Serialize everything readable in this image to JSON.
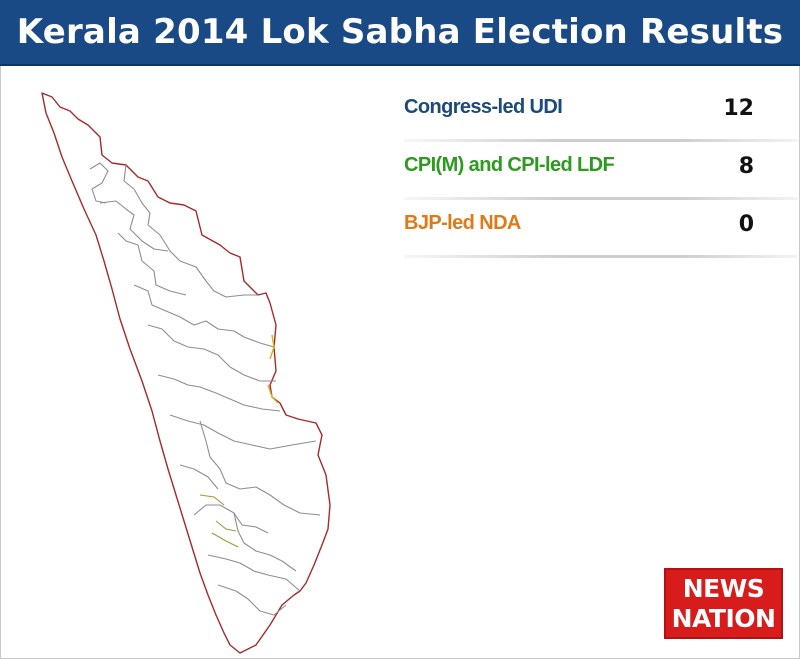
{
  "header": {
    "title": "Kerala 2014 Lok Sabha Election Results"
  },
  "results": [
    {
      "label": "Congress-led UDI",
      "value": "12",
      "color": "#1b4a7e"
    },
    {
      "label": "CPI(M) and CPI-led LDF",
      "value": "8",
      "color": "#2e9a1f"
    },
    {
      "label": "BJP-led NDA",
      "value": "0",
      "color": "#e07a17"
    }
  ],
  "map": {
    "region": "Kerala",
    "boundary_color": "#a62b2b",
    "district_line_color": "#8e8e8e"
  },
  "logo": {
    "line1": "NEWS",
    "line2": "NATION",
    "color": "#d81b1b"
  }
}
